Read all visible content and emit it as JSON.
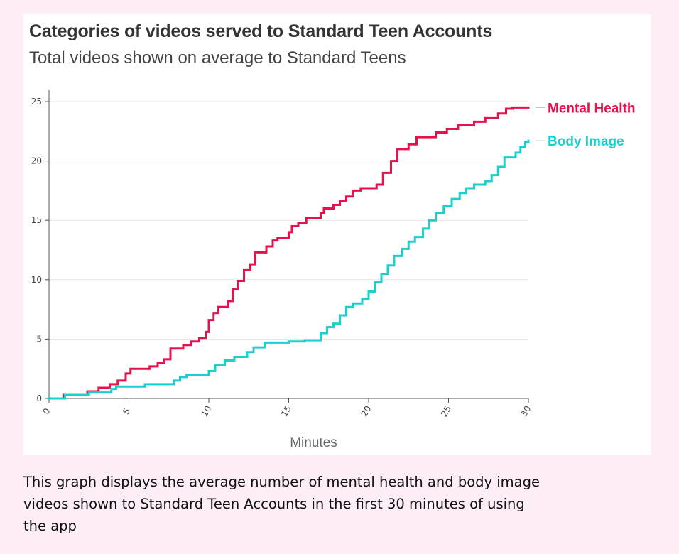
{
  "page": {
    "caption": "This graph displays the average number of mental health and body image videos shown to Standard Teen Accounts in the first 30 minutes of using the app"
  },
  "chart_data": {
    "type": "line",
    "step": true,
    "title": "Categories of videos served to Standard Teen Accounts",
    "subtitle": "Total videos shown on average to Standard Teens",
    "xlabel": "Minutes",
    "ylabel": "",
    "xlim": [
      0,
      30
    ],
    "ylim": [
      0,
      25
    ],
    "x_ticks": [
      0,
      5,
      10,
      15,
      20,
      25,
      30
    ],
    "y_ticks": [
      0,
      5,
      10,
      15,
      20,
      25
    ],
    "grid": "horizontal",
    "legend": "direct labels at right end of lines",
    "series": [
      {
        "name": "Mental Health",
        "color": "#e8114d",
        "points": [
          [
            0,
            0
          ],
          [
            0.9,
            0.3
          ],
          [
            2.4,
            0.6
          ],
          [
            3.1,
            0.9
          ],
          [
            3.8,
            1.2
          ],
          [
            4.3,
            1.5
          ],
          [
            4.8,
            2.1
          ],
          [
            5.1,
            2.5
          ],
          [
            6.3,
            2.7
          ],
          [
            6.8,
            3.0
          ],
          [
            7.2,
            3.3
          ],
          [
            7.6,
            4.2
          ],
          [
            8.4,
            4.5
          ],
          [
            8.9,
            4.8
          ],
          [
            9.4,
            5.1
          ],
          [
            9.8,
            5.6
          ],
          [
            10.0,
            6.6
          ],
          [
            10.3,
            7.2
          ],
          [
            10.6,
            7.7
          ],
          [
            11.2,
            8.2
          ],
          [
            11.5,
            9.2
          ],
          [
            11.8,
            9.9
          ],
          [
            12.2,
            10.8
          ],
          [
            12.6,
            11.3
          ],
          [
            12.9,
            12.3
          ],
          [
            13.6,
            12.8
          ],
          [
            14.0,
            13.3
          ],
          [
            14.3,
            13.5
          ],
          [
            15.0,
            14.0
          ],
          [
            15.2,
            14.5
          ],
          [
            15.6,
            14.8
          ],
          [
            16.1,
            15.2
          ],
          [
            17.0,
            15.6
          ],
          [
            17.2,
            16.0
          ],
          [
            17.8,
            16.3
          ],
          [
            18.2,
            16.6
          ],
          [
            18.6,
            17.0
          ],
          [
            19.0,
            17.5
          ],
          [
            19.5,
            17.7
          ],
          [
            20.5,
            18.0
          ],
          [
            20.9,
            19.0
          ],
          [
            21.4,
            20.0
          ],
          [
            21.8,
            21.0
          ],
          [
            22.5,
            21.4
          ],
          [
            23.0,
            22.0
          ],
          [
            24.2,
            22.4
          ],
          [
            24.9,
            22.7
          ],
          [
            25.6,
            23.0
          ],
          [
            26.6,
            23.3
          ],
          [
            27.3,
            23.6
          ],
          [
            28.1,
            24.0
          ],
          [
            28.6,
            24.4
          ],
          [
            29.0,
            24.5
          ],
          [
            30.0,
            24.5
          ]
        ]
      },
      {
        "name": "Body Image",
        "color": "#1ad0cc",
        "points": [
          [
            0,
            0
          ],
          [
            1.0,
            0.3
          ],
          [
            2.5,
            0.5
          ],
          [
            3.9,
            0.8
          ],
          [
            4.2,
            1.0
          ],
          [
            6.0,
            1.2
          ],
          [
            7.8,
            1.5
          ],
          [
            8.2,
            1.8
          ],
          [
            8.6,
            2.0
          ],
          [
            10.0,
            2.3
          ],
          [
            10.4,
            2.8
          ],
          [
            11.0,
            3.2
          ],
          [
            11.6,
            3.5
          ],
          [
            12.4,
            3.9
          ],
          [
            12.8,
            4.3
          ],
          [
            13.5,
            4.7
          ],
          [
            15.0,
            4.8
          ],
          [
            16.0,
            4.9
          ],
          [
            17.0,
            5.5
          ],
          [
            17.4,
            6.0
          ],
          [
            17.8,
            6.3
          ],
          [
            18.2,
            7.0
          ],
          [
            18.6,
            7.7
          ],
          [
            19.0,
            8.0
          ],
          [
            19.6,
            8.4
          ],
          [
            20.0,
            9.0
          ],
          [
            20.4,
            9.8
          ],
          [
            20.8,
            10.5
          ],
          [
            21.2,
            11.2
          ],
          [
            21.6,
            12.0
          ],
          [
            22.1,
            12.6
          ],
          [
            22.5,
            13.2
          ],
          [
            22.9,
            13.6
          ],
          [
            23.4,
            14.3
          ],
          [
            23.8,
            15.0
          ],
          [
            24.2,
            15.6
          ],
          [
            24.7,
            16.2
          ],
          [
            25.2,
            16.8
          ],
          [
            25.7,
            17.3
          ],
          [
            26.1,
            17.7
          ],
          [
            26.6,
            18.0
          ],
          [
            27.3,
            18.3
          ],
          [
            27.7,
            18.8
          ],
          [
            28.1,
            19.5
          ],
          [
            28.5,
            20.3
          ],
          [
            29.2,
            20.7
          ],
          [
            29.5,
            21.2
          ],
          [
            29.8,
            21.6
          ],
          [
            30.0,
            21.7
          ]
        ]
      }
    ]
  }
}
